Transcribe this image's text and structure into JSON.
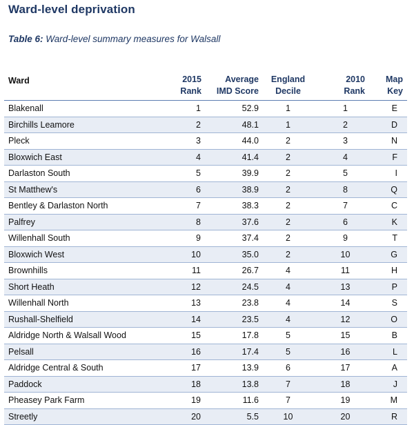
{
  "section_title": "Ward-level deprivation",
  "caption": {
    "label": "Table 6:",
    "text": " Ward-level summary measures for Walsall"
  },
  "headers": {
    "ward": "Ward",
    "rank_2015": [
      "2015",
      "Rank"
    ],
    "imd_score": [
      "Average",
      "IMD Score"
    ],
    "england_decile": [
      "England",
      "Decile"
    ],
    "rank_2010": [
      "2010",
      "Rank"
    ],
    "map_key": [
      "Map",
      "Key"
    ]
  },
  "rows": [
    {
      "ward": "Blakenall",
      "rank_2015": "1",
      "imd": "52.9",
      "decile": "1",
      "rank_2010": "1",
      "key": "E"
    },
    {
      "ward": "Birchills Leamore",
      "rank_2015": "2",
      "imd": "48.1",
      "decile": "1",
      "rank_2010": "2",
      "key": "D"
    },
    {
      "ward": "Pleck",
      "rank_2015": "3",
      "imd": "44.0",
      "decile": "2",
      "rank_2010": "3",
      "key": "N"
    },
    {
      "ward": "Bloxwich East",
      "rank_2015": "4",
      "imd": "41.4",
      "decile": "2",
      "rank_2010": "4",
      "key": "F"
    },
    {
      "ward": "Darlaston South",
      "rank_2015": "5",
      "imd": "39.9",
      "decile": "2",
      "rank_2010": "5",
      "key": "I"
    },
    {
      "ward": "St Matthew's",
      "rank_2015": "6",
      "imd": "38.9",
      "decile": "2",
      "rank_2010": "8",
      "key": "Q"
    },
    {
      "ward": "Bentley &  Darlaston North",
      "rank_2015": "7",
      "imd": "38.3",
      "decile": "2",
      "rank_2010": "7",
      "key": "C"
    },
    {
      "ward": "Palfrey",
      "rank_2015": "8",
      "imd": "37.6",
      "decile": "2",
      "rank_2010": "6",
      "key": "K"
    },
    {
      "ward": "Willenhall South",
      "rank_2015": "9",
      "imd": "37.4",
      "decile": "2",
      "rank_2010": "9",
      "key": "T"
    },
    {
      "ward": "Bloxwich West",
      "rank_2015": "10",
      "imd": "35.0",
      "decile": "2",
      "rank_2010": "10",
      "key": "G"
    },
    {
      "ward": "Brownhills",
      "rank_2015": "11",
      "imd": "26.7",
      "decile": "4",
      "rank_2010": "11",
      "key": "H"
    },
    {
      "ward": "Short Heath",
      "rank_2015": "12",
      "imd": "24.5",
      "decile": "4",
      "rank_2010": "13",
      "key": "P"
    },
    {
      "ward": "Willenhall North",
      "rank_2015": "13",
      "imd": "23.8",
      "decile": "4",
      "rank_2010": "14",
      "key": "S"
    },
    {
      "ward": "Rushall-Shelfield",
      "rank_2015": "14",
      "imd": "23.5",
      "decile": "4",
      "rank_2010": "12",
      "key": "O"
    },
    {
      "ward": "Aldridge North & Walsall Wood",
      "rank_2015": "15",
      "imd": "17.8",
      "decile": "5",
      "rank_2010": "15",
      "key": "B"
    },
    {
      "ward": "Pelsall",
      "rank_2015": "16",
      "imd": "17.4",
      "decile": "5",
      "rank_2010": "16",
      "key": "L"
    },
    {
      "ward": "Aldridge Central & South",
      "rank_2015": "17",
      "imd": "13.9",
      "decile": "6",
      "rank_2010": "17",
      "key": "A"
    },
    {
      "ward": "Paddock",
      "rank_2015": "18",
      "imd": "13.8",
      "decile": "7",
      "rank_2010": "18",
      "key": "J"
    },
    {
      "ward": "Pheasey Park Farm",
      "rank_2015": "19",
      "imd": "11.6",
      "decile": "7",
      "rank_2010": "19",
      "key": "M"
    },
    {
      "ward": "Streetly",
      "rank_2015": "20",
      "imd": "5.5",
      "decile": "10",
      "rank_2010": "20",
      "key": "R"
    }
  ],
  "colors": {
    "heading": "#1f3864",
    "row_band": "#e8edf5",
    "rule": "#9fb4d4"
  }
}
